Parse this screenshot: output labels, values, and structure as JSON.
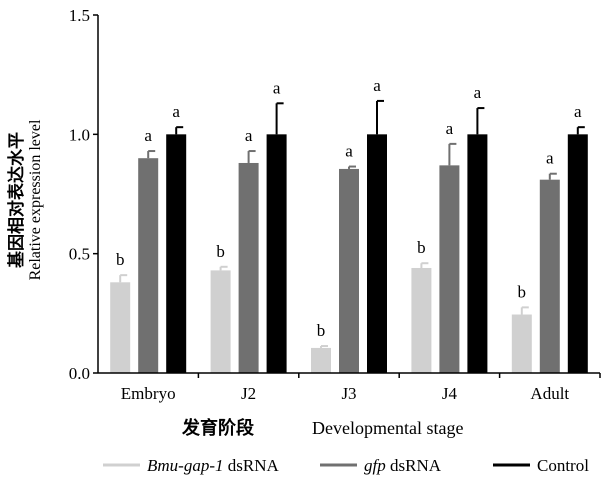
{
  "chart_data": {
    "type": "bar",
    "categories": [
      "Embryo",
      "J2",
      "J3",
      "J4",
      "Adult"
    ],
    "series": [
      {
        "name": "Bmu-gap-1 dsRNA",
        "name_italic": "Bmu-gap-1",
        "name_suffix": " dsRNA",
        "color": "#d0d0d0",
        "values": [
          0.38,
          0.43,
          0.105,
          0.44,
          0.245
        ],
        "errors": [
          0.03,
          0.015,
          0.008,
          0.02,
          0.03
        ],
        "sig": [
          "b",
          "b",
          "b",
          "b",
          "b"
        ]
      },
      {
        "name": "gfp dsRNA",
        "name_italic": "gfp",
        "name_suffix": " dsRNA",
        "color": "#707070",
        "values": [
          0.9,
          0.88,
          0.855,
          0.87,
          0.81
        ],
        "errors": [
          0.03,
          0.05,
          0.01,
          0.09,
          0.025
        ],
        "sig": [
          "a",
          "a",
          "a",
          "a",
          "a"
        ]
      },
      {
        "name": "Control",
        "name_italic": "",
        "name_suffix": "Control",
        "color": "#000000",
        "values": [
          1.0,
          1.0,
          1.0,
          1.0,
          1.0
        ],
        "errors": [
          0.03,
          0.13,
          0.14,
          0.11,
          0.03
        ],
        "sig": [
          "a",
          "a",
          "a",
          "a",
          "a"
        ]
      }
    ],
    "ylim": [
      0,
      1.5
    ],
    "yticks": [
      "0.0",
      "0.5",
      "1.0",
      "1.5"
    ],
    "ylabel_cn": "基因相对表达水平",
    "ylabel_en": "Relative expression level",
    "xlabel_cn": "发育阶段",
    "xlabel_en": "Developmental stage",
    "legend_position": "bottom"
  }
}
